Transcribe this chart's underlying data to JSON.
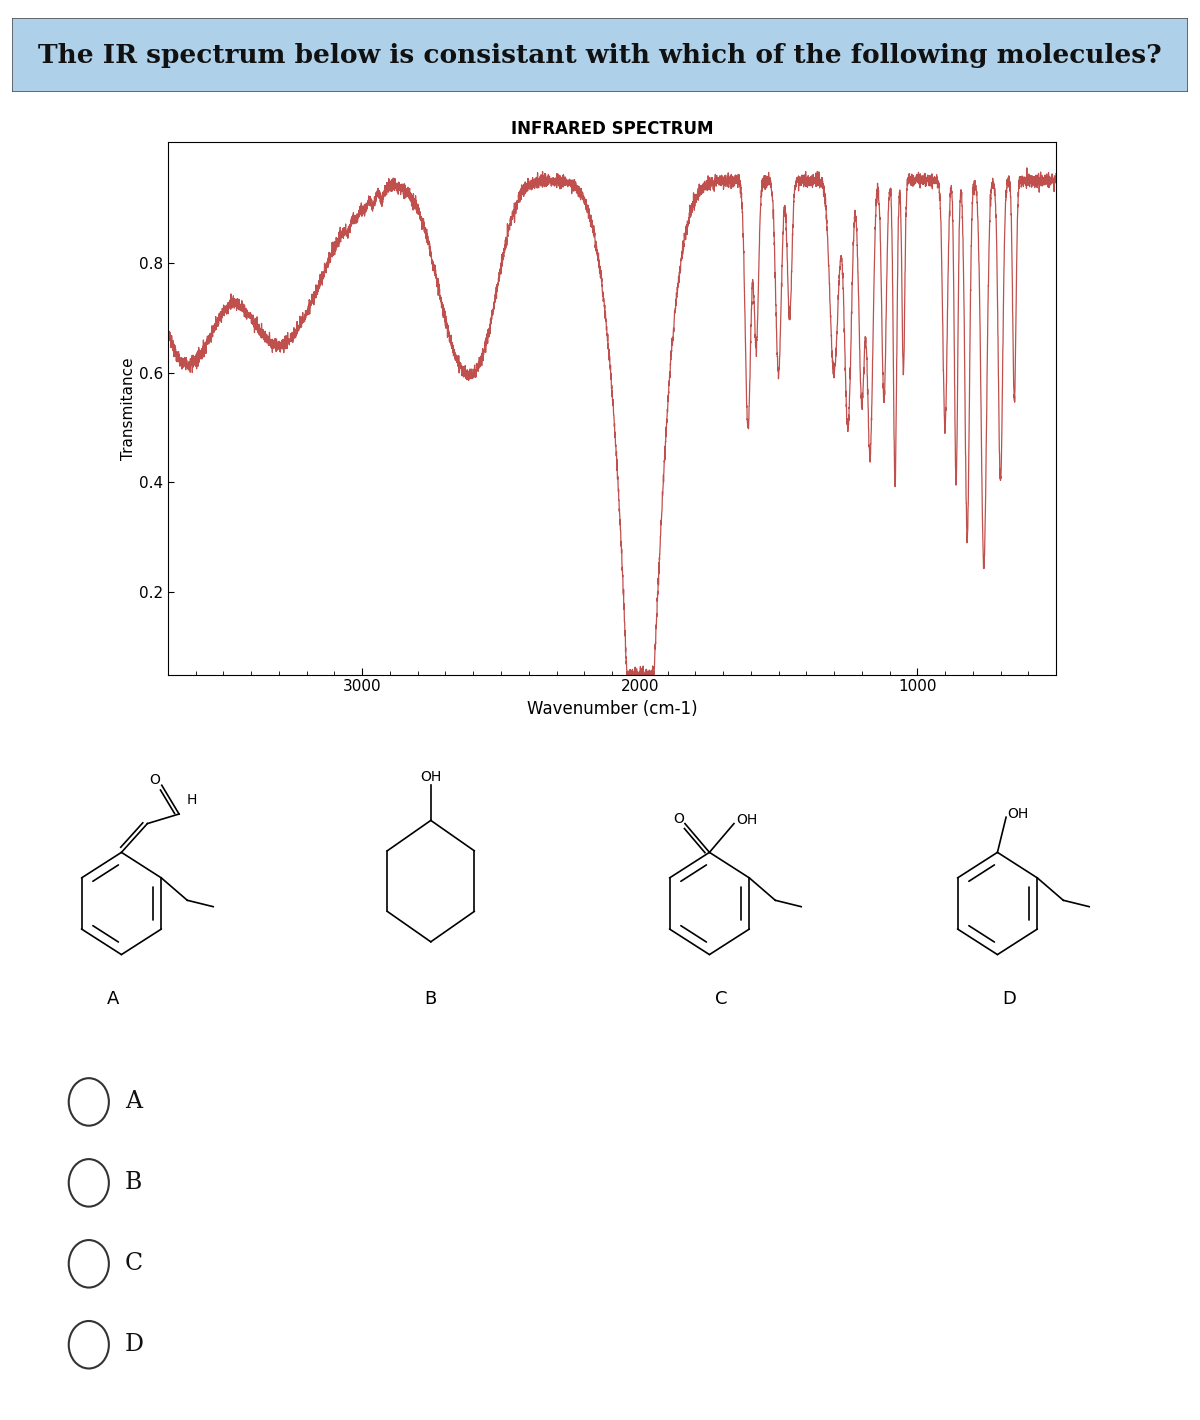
{
  "title": "The IR spectrum below is consistant with which of the following molecules?",
  "title_bg": "#aed0e8",
  "spectrum_title": "INFRARED SPECTRUM",
  "xlabel": "Wavenumber (cm-1)",
  "ylabel": "Transmitance",
  "yticks": [
    0.2,
    0.4,
    0.6,
    0.8
  ],
  "xticks": [
    3000,
    2000,
    1000
  ],
  "xmin": 4000,
  "xmax": 500,
  "ymin": 0.05,
  "ymax": 1.02,
  "line_color": "#c0504d",
  "bg_color": "#ffffff",
  "options": [
    "A",
    "B",
    "C",
    "D"
  ]
}
